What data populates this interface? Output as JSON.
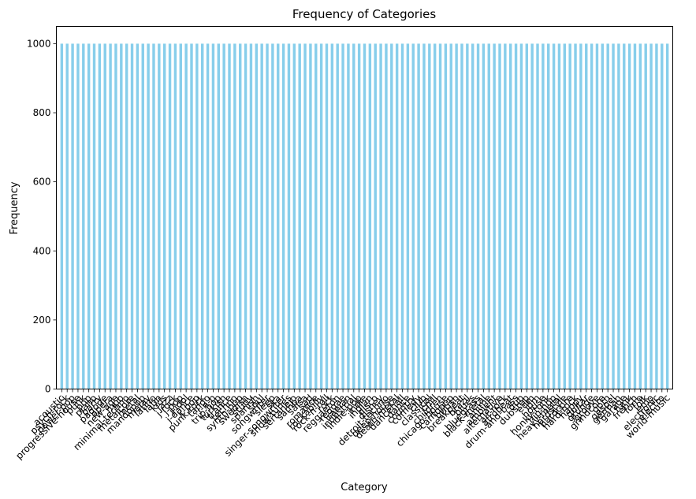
{
  "chart_data": {
    "type": "bar",
    "title": "Frequency of Categories",
    "xlabel": "Category",
    "ylabel": "Frequency",
    "ylim": [
      0,
      1050
    ],
    "yticks": [
      0,
      200,
      400,
      600,
      800,
      1000
    ],
    "grid": false,
    "bar_color": "#87ceeb",
    "categories": [
      "acoustic",
      "afrobeat",
      "alt-rock",
      "alternative",
      "ambient",
      "anime",
      "black-metal",
      "bluegrass",
      "blues",
      "brazil",
      "breakbeat",
      "british",
      "cantopop",
      "chicago-house",
      "children",
      "chill",
      "classical",
      "club",
      "comedy",
      "country",
      "dance",
      "dancehall",
      "death-metal",
      "deep-house",
      "detroit-techno",
      "disco",
      "disney",
      "drum-and-bass",
      "dub",
      "dubstep",
      "edm",
      "electro",
      "electronic",
      "emo",
      "folk",
      "forro",
      "french",
      "funk",
      "garage",
      "german",
      "gospel",
      "goth",
      "grindcore",
      "groove",
      "grunge",
      "guitar",
      "happy",
      "hard-rock",
      "hardcore",
      "hardstyle",
      "heavy-metal",
      "hip-hop",
      "honky-tonk",
      "house",
      "idm",
      "indian",
      "indie",
      "indie-pop",
      "industrial",
      "iranian",
      "j-dance",
      "j-idol",
      "j-pop",
      "j-rock",
      "jazz",
      "k-pop",
      "kids",
      "latin",
      "latino",
      "malay",
      "mandopop",
      "metal",
      "metalcore",
      "minimal-techno",
      "mpb",
      "new-age",
      "opera",
      "pagode",
      "party",
      "piano",
      "pop",
      "pop-film",
      "power-pop",
      "progressive-house",
      "psych-rock",
      "punk",
      "punk-rock",
      "r-n-b",
      "reggae",
      "reggaeton",
      "rock",
      "rock-n-roll",
      "rockabilly",
      "romance",
      "sad",
      "salsa",
      "samba",
      "sertanejo",
      "show-tunes",
      "singer-songwriter",
      "ska",
      "sleep",
      "songwriter",
      "soul",
      "spanish",
      "study",
      "swedish",
      "synth-pop",
      "tango",
      "techno",
      "trance",
      "trip-hop",
      "turkish",
      "world-music"
    ],
    "display_order": [
      "acoustic",
      "psych-rock",
      "power-pop",
      "progressive-house",
      "punk",
      "pop",
      "piano",
      "party",
      "pagode",
      "opera",
      "new-age",
      "mpb",
      "minimal-techno",
      "metalcore",
      "metal",
      "mandopop",
      "malay",
      "latino",
      "latin",
      "kids",
      "jazz",
      "j-rock",
      "j-pop",
      "j-idol",
      "j-dance",
      "k-pop",
      "punk-rock",
      "tango",
      "r-n-b",
      "trip-hop",
      "turkish",
      "trance",
      "techno",
      "synth-pop",
      "swedish",
      "study",
      "spanish",
      "soul",
      "songwriter",
      "sleep",
      "ska",
      "singer-songwriter",
      "show-tunes",
      "sertanejo",
      "samba",
      "salsa",
      "sad",
      "romance",
      "rockabilly",
      "rock-n-roll",
      "rock",
      "reggaeton",
      "reggae",
      "iranian",
      "industrial",
      "indie-pop",
      "indie",
      "indian",
      "disco",
      "disney",
      "detroit-techno",
      "deep-house",
      "death-metal",
      "dancehall",
      "dance",
      "country",
      "comedy",
      "club",
      "classical",
      "chill",
      "children",
      "chicago-house",
      "cantopop",
      "british",
      "breakbeat",
      "brazil",
      "blues",
      "bluegrass",
      "black-metal",
      "anime",
      "ambient",
      "alternative",
      "alt-rock",
      "afrobeat",
      "drum-and-bass",
      "dub",
      "dubstep",
      "edm",
      "idm",
      "house",
      "honky-tonk",
      "hip-hop",
      "heavy-metal",
      "hardstyle",
      "hardcore",
      "hard-rock",
      "happy",
      "guitar",
      "grunge",
      "groove",
      "grindcore",
      "goth",
      "gospel",
      "german",
      "garage",
      "funk",
      "french",
      "forro",
      "folk",
      "emo",
      "electronic",
      "electro",
      "world-music"
    ],
    "values_note_free": true,
    "value_each": 1000
  }
}
